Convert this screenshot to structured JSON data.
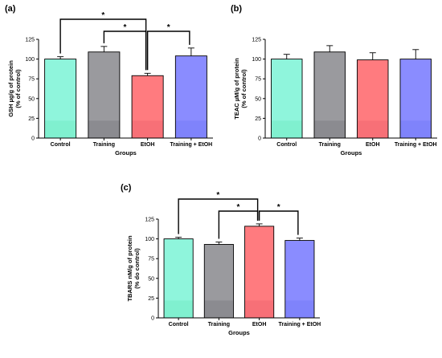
{
  "chart_data": [
    {
      "type": "bar",
      "panel": "(a)",
      "categories": [
        "Control",
        "Training",
        "EtOH",
        "Training + EtOH"
      ],
      "values": [
        100,
        109,
        79,
        104
      ],
      "errors": [
        3,
        7,
        3,
        10
      ],
      "xlabel": "Groups",
      "ylabel": [
        "GSH µg/g of protein",
        "(% of control)"
      ],
      "ylim": [
        0,
        125
      ],
      "yticks": [
        0,
        25,
        50,
        75,
        100,
        125
      ],
      "significance": [
        {
          "from": 0,
          "to": 2,
          "label": "*"
        },
        {
          "from": 1,
          "to": 2,
          "label": "*"
        },
        {
          "from": 2,
          "to": 3,
          "label": "*"
        }
      ]
    },
    {
      "type": "bar",
      "panel": "(b)",
      "categories": [
        "Control",
        "Training",
        "EtOH",
        "Training + EtOH"
      ],
      "values": [
        100,
        109,
        99,
        100
      ],
      "errors": [
        6,
        8,
        9,
        12
      ],
      "xlabel": "Groups",
      "ylabel": [
        "TEAC µM/g of protein",
        "(% of control)"
      ],
      "ylim": [
        0,
        125
      ],
      "yticks": [
        0,
        25,
        50,
        75,
        100,
        125
      ],
      "significance": []
    },
    {
      "type": "bar",
      "panel": "(c)",
      "categories": [
        "Control",
        "Training",
        "EtOH",
        "Training + EtOH"
      ],
      "values": [
        100,
        93,
        116,
        98
      ],
      "errors": [
        2,
        3,
        3,
        3
      ],
      "xlabel": "Groups",
      "ylabel": [
        "TBARS nM/g of protein",
        "(% do control)"
      ],
      "ylim": [
        0,
        125
      ],
      "yticks": [
        0,
        25,
        50,
        75,
        100,
        125
      ],
      "significance": [
        {
          "from": 0,
          "to": 2,
          "label": "*"
        },
        {
          "from": 1,
          "to": 2,
          "label": "*"
        },
        {
          "from": 2,
          "to": 3,
          "label": "*"
        }
      ]
    }
  ],
  "colors": {
    "bars": [
      "#8ff5dc",
      "#9a9a9e",
      "#ff7b7f",
      "#8a8cff"
    ],
    "bars_lower": [
      "#80f0cf",
      "#8b8b90",
      "#f77077",
      "#7f83fb"
    ]
  }
}
